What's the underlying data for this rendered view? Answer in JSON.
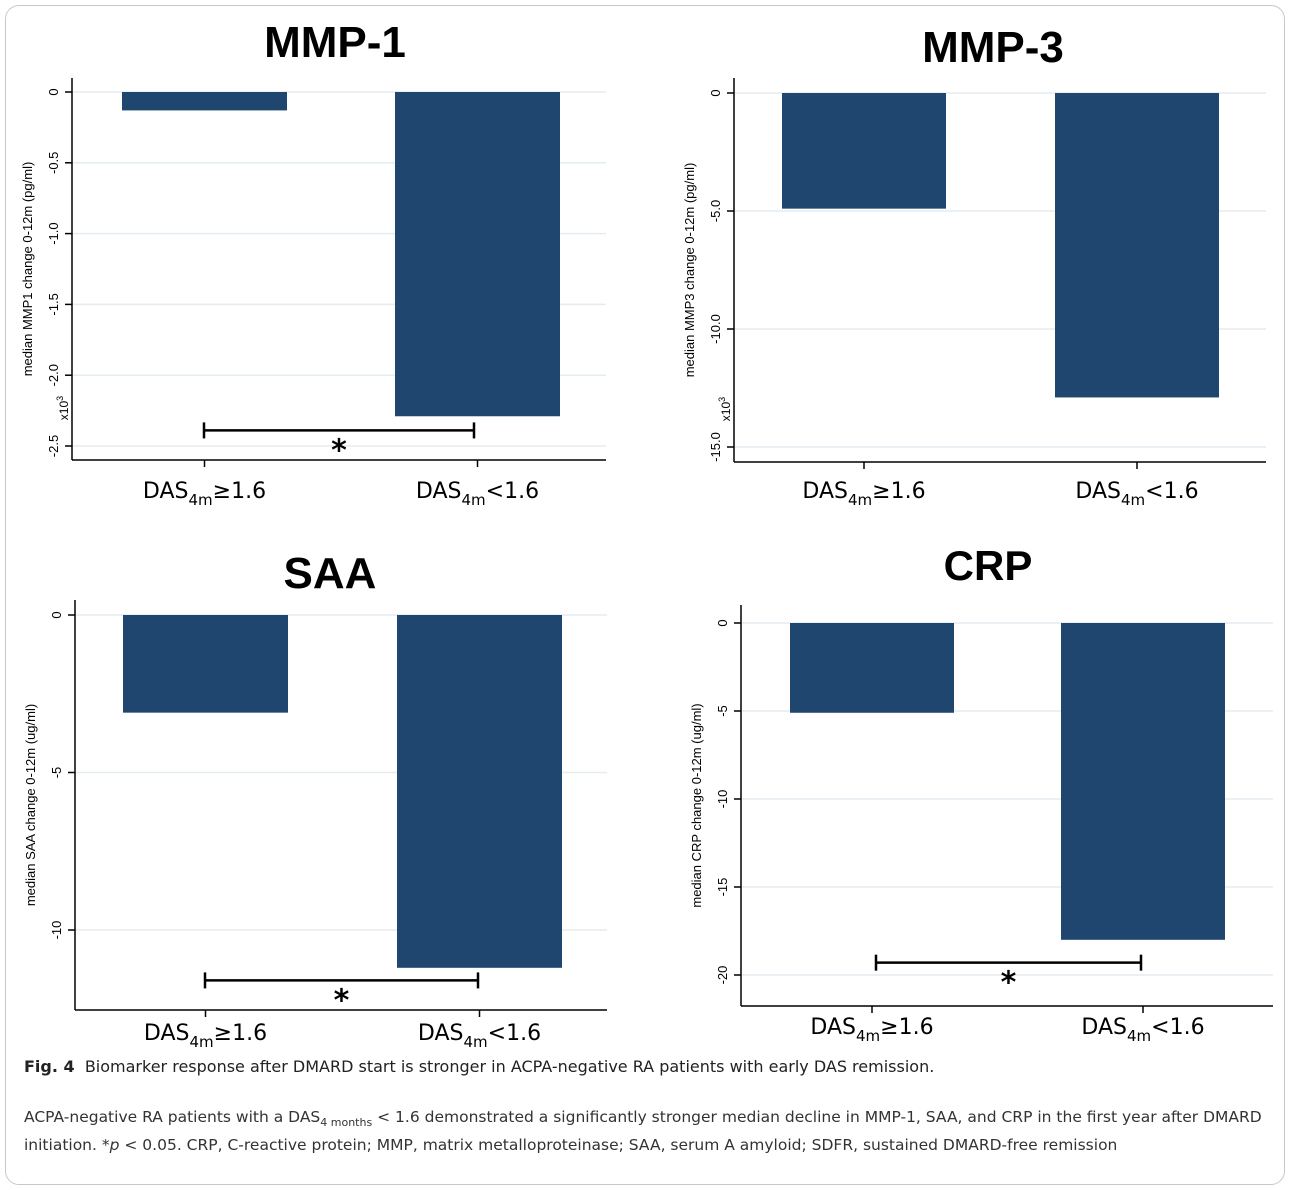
{
  "chart_data": [
    {
      "type": "bar",
      "title": "MMP-1",
      "ylabel": "median MMP1 change 0-12m (pg/ml)",
      "yscale_label": "x10",
      "yscale_exp": "3",
      "ylim": [
        -2.6,
        0.1
      ],
      "yticks": [
        0,
        -0.5,
        -1.0,
        -1.5,
        -2.0,
        -2.5
      ],
      "ytick_labels": [
        "0",
        "-0.5",
        "-1.0",
        "-1.5",
        "-2.0",
        "-2.5"
      ],
      "grid": true,
      "categories": [
        {
          "base": "DAS",
          "sub": "4m",
          "tail": "≥1.6"
        },
        {
          "base": "DAS",
          "sub": "4m",
          "tail": "<1.6"
        }
      ],
      "values": [
        -0.13,
        -2.29
      ],
      "significance": {
        "label": "*",
        "y": -2.39
      }
    },
    {
      "type": "bar",
      "title": "MMP-3",
      "ylabel": "median MMP3 change 0-12m (pg/ml)",
      "yscale_label": "x10",
      "yscale_exp": "3",
      "ylim": [
        -15.6,
        0.4
      ],
      "yticks": [
        0,
        -5.0,
        -10.0,
        -15.0
      ],
      "ytick_labels": [
        "0",
        "-5.0",
        "-10.0",
        "-15.0"
      ],
      "grid": true,
      "categories": [
        {
          "base": "DAS",
          "sub": "4m",
          "tail": "≥1.6"
        },
        {
          "base": "DAS",
          "sub": "4m",
          "tail": "<1.6"
        }
      ],
      "values": [
        -4.9,
        -12.9
      ],
      "significance": null
    },
    {
      "type": "bar",
      "title": "SAA",
      "ylabel": "median SAA change 0-12m (ug/ml)",
      "yscale_label": "",
      "yscale_exp": "",
      "ylim": [
        -12.3,
        0.4
      ],
      "yticks": [
        0,
        -5,
        -10
      ],
      "ytick_labels": [
        "0",
        "-5",
        "-10"
      ],
      "grid": true,
      "categories": [
        {
          "base": "DAS",
          "sub": "4m",
          "tail": "≥1.6"
        },
        {
          "base": "DAS",
          "sub": "4m",
          "tail": "<1.6"
        }
      ],
      "values": [
        -3.1,
        -11.2
      ],
      "significance": {
        "label": "*",
        "y": -11.6
      }
    },
    {
      "type": "bar",
      "title": "CRP",
      "ylabel": "median CRP change 0-12m (ug/ml)",
      "yscale_label": "",
      "yscale_exp": "",
      "ylim": [
        -21.2,
        0.9
      ],
      "yticks": [
        0,
        -5,
        -10,
        -15,
        -20
      ],
      "ytick_labels": [
        "0",
        "-5",
        "-10",
        "-15",
        "-20"
      ],
      "grid": true,
      "categories": [
        {
          "base": "DAS",
          "sub": "4m",
          "tail": "≥1.6"
        },
        {
          "base": "DAS",
          "sub": "4m",
          "tail": "<1.6"
        }
      ],
      "values": [
        -5.1,
        -18.0
      ],
      "significance": {
        "label": "*",
        "y": -19.3
      }
    }
  ],
  "colors": {
    "bar": "#1e466e",
    "grid": "#e3ecf1",
    "axis": "#000000"
  },
  "caption": {
    "label": "Fig. 4",
    "text": "Biomarker response after DMARD start is stronger in ACPA-negative RA patients with early DAS remission."
  },
  "note": {
    "part1": "ACPA-negative RA patients with a DAS",
    "sub": "4 months",
    "part2": " < 1.6 demonstrated a significantly stronger median decline in MMP-1, SAA, and CRP in the first year after DMARD initiation. *",
    "p": "p",
    "part3": " < 0.05. CRP, C-reactive protein; MMP, matrix metalloproteinase; SAA, serum A amyloid; SDFR, sustained DMARD-free remission"
  }
}
